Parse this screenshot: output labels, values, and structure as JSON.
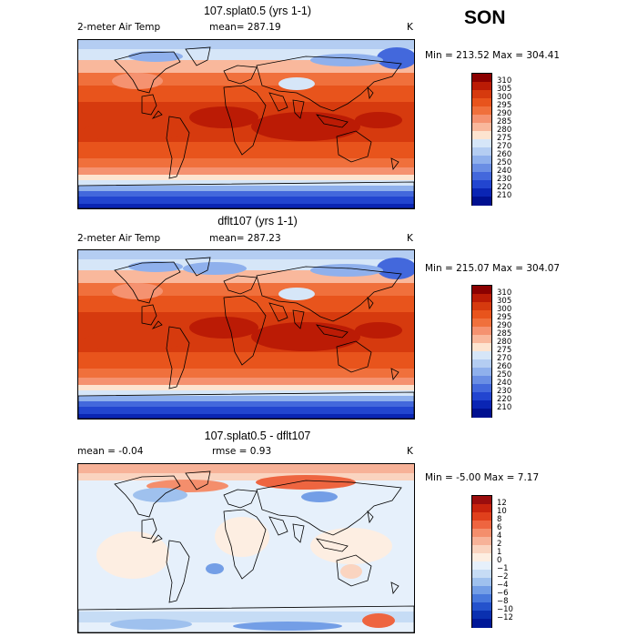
{
  "season": "SON",
  "panels": [
    {
      "id": "top",
      "title": "107.splat0.5 (yrs 1-1)",
      "variable": "2-meter Air Temp",
      "stat_text": "mean= 287.19",
      "stat2_text": "",
      "units": "K",
      "minmax": "Min = 213.52 Max = 304.41"
    },
    {
      "id": "middle",
      "title": "dflt107 (yrs 1-1)",
      "variable": "2-meter Air Temp",
      "stat_text": "mean= 287.23",
      "stat2_text": "",
      "units": "K",
      "minmax": "Min = 215.07 Max = 304.07"
    },
    {
      "id": "bottom",
      "title": "107.splat0.5 - dflt107",
      "variable": "",
      "stat_text": "mean =   -0.04",
      "stat2_text": "rmse =    0.93",
      "units": "K",
      "minmax": "Min =  -5.00 Max =   7.17"
    }
  ],
  "chart_data": [
    {
      "type": "heatmap",
      "title": "107.splat0.5 (yrs 1-1)",
      "field": "2-meter Air Temp",
      "units": "K",
      "mean": 287.19,
      "min": 213.52,
      "max": 304.41,
      "colorbar": {
        "levels": [
          "310",
          "305",
          "300",
          "295",
          "290",
          "285",
          "280",
          "275",
          "270",
          "260",
          "250",
          "240",
          "230",
          "220",
          "210"
        ],
        "colors": [
          "#8b0000",
          "#bb1b05",
          "#d63a0e",
          "#e8541c",
          "#f0703c",
          "#f59270",
          "#f9b89c",
          "#fde4d0",
          "#d6e6f8",
          "#b4cdf2",
          "#8fb0ec",
          "#6a8ee4",
          "#4368dc",
          "#2245d0",
          "#0a25b4",
          "#001090"
        ]
      }
    },
    {
      "type": "heatmap",
      "title": "dflt107 (yrs 1-1)",
      "field": "2-meter Air Temp",
      "units": "K",
      "mean": 287.23,
      "min": 215.07,
      "max": 304.07,
      "colorbar": {
        "levels": [
          "310",
          "305",
          "300",
          "295",
          "290",
          "285",
          "280",
          "275",
          "270",
          "260",
          "250",
          "240",
          "230",
          "220",
          "210"
        ],
        "colors": [
          "#8b0000",
          "#bb1b05",
          "#d63a0e",
          "#e8541c",
          "#f0703c",
          "#f59270",
          "#f9b89c",
          "#fde4d0",
          "#d6e6f8",
          "#b4cdf2",
          "#8fb0ec",
          "#6a8ee4",
          "#4368dc",
          "#2245d0",
          "#0a25b4",
          "#001090"
        ]
      }
    },
    {
      "type": "heatmap",
      "title": "107.splat0.5 - dflt107",
      "units": "K",
      "mean": -0.04,
      "rmse": 0.93,
      "min": -5.0,
      "max": 7.17,
      "colorbar": {
        "levels": [
          "12",
          "10",
          "8",
          "6",
          "4",
          "2",
          "1",
          "0",
          "−1",
          "−2",
          "−4",
          "−6",
          "−8",
          "−10",
          "−12"
        ],
        "colors": [
          "#9b0d0d",
          "#c8230d",
          "#e0401c",
          "#ee6540",
          "#f48e6c",
          "#f7b298",
          "#fad4c0",
          "#fdeee2",
          "#e6f0fb",
          "#c6dcf5",
          "#9fc1ee",
          "#739ee6",
          "#4878dc",
          "#2452cc",
          "#0a30b0",
          "#001898"
        ]
      }
    }
  ]
}
